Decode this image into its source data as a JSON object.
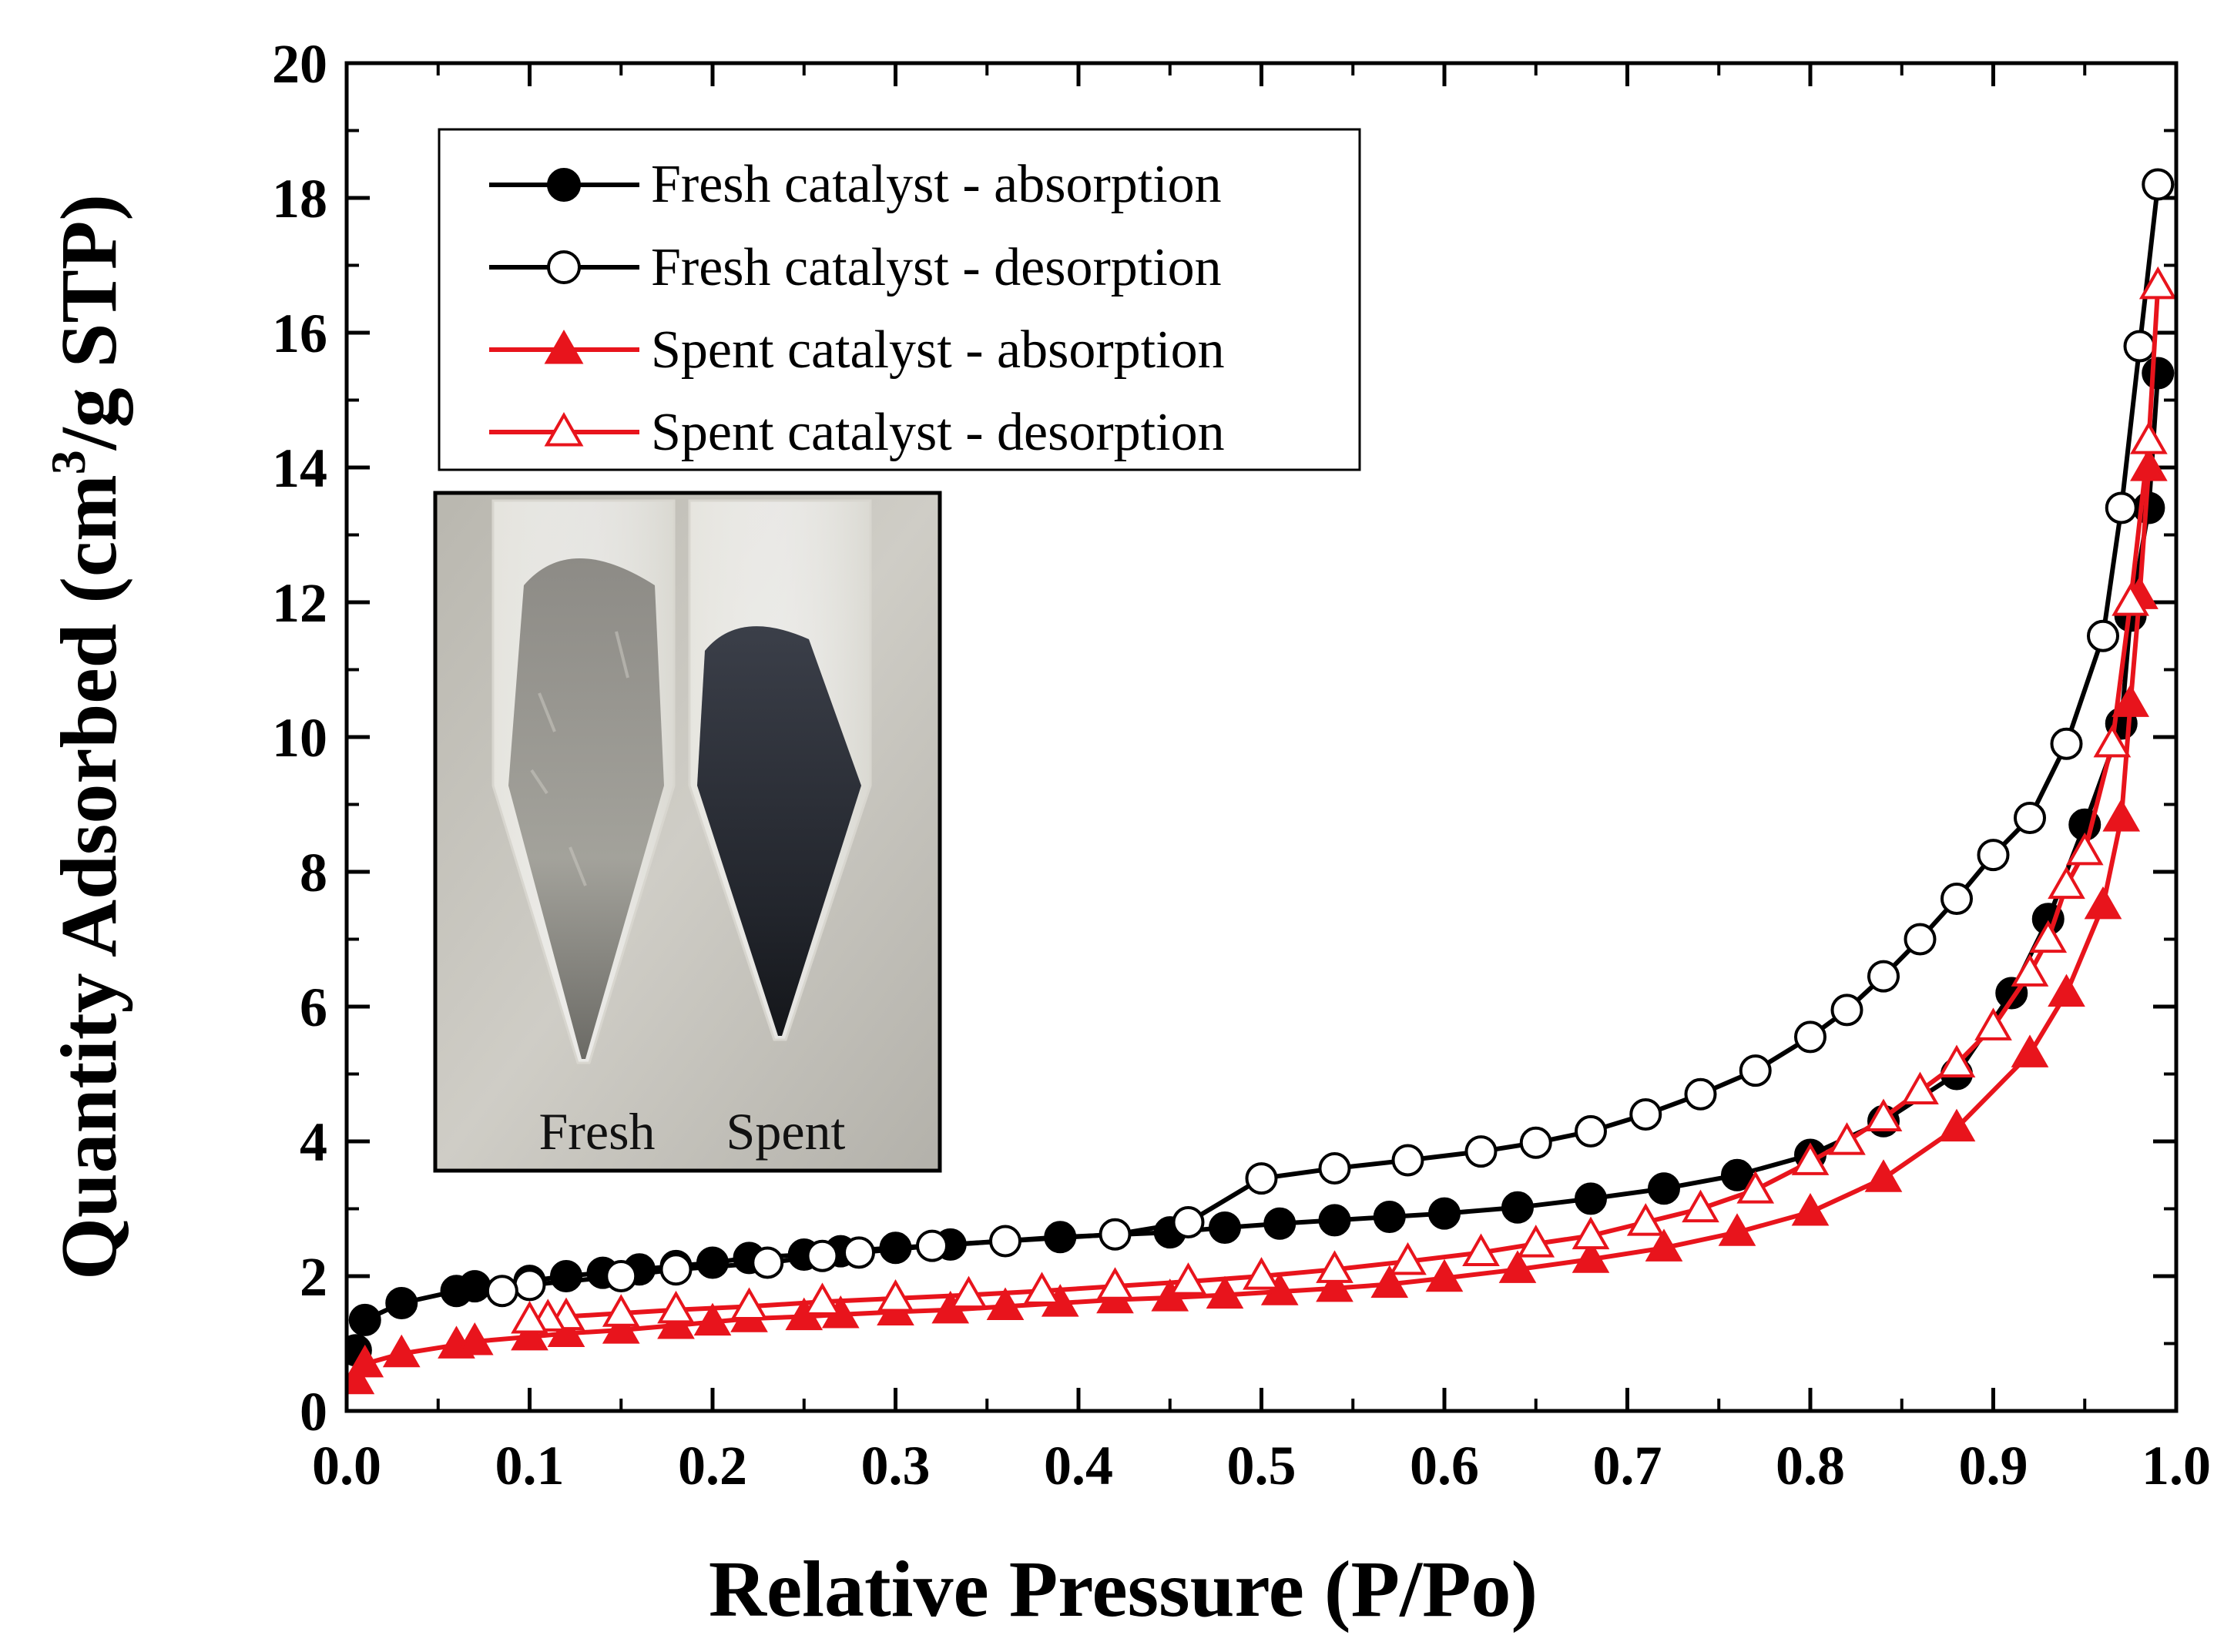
{
  "chart_data": {
    "type": "line",
    "title": "",
    "xlabel": "Relative Pressure (P/Po)",
    "ylabel_main": "Quantity Adsorbed (cm",
    "ylabel_sup": "3",
    "ylabel_tail": "/g STP)",
    "xlim": [
      0.0,
      1.0
    ],
    "ylim": [
      0,
      20
    ],
    "x_ticks": [
      "0.0",
      "0.1",
      "0.2",
      "0.3",
      "0.4",
      "0.5",
      "0.6",
      "0.7",
      "0.8",
      "0.9",
      "1.0"
    ],
    "y_ticks": [
      "0",
      "2",
      "4",
      "6",
      "8",
      "10",
      "12",
      "14",
      "16",
      "18",
      "20"
    ],
    "legend_position": "top-left",
    "series": [
      {
        "name": "Fresh catalyst - absorption",
        "color": "#000000",
        "marker": "circle",
        "filled": true,
        "points": [
          [
            0.005,
            0.9
          ],
          [
            0.01,
            1.35
          ],
          [
            0.03,
            1.6
          ],
          [
            0.06,
            1.78
          ],
          [
            0.07,
            1.85
          ],
          [
            0.1,
            1.93
          ],
          [
            0.12,
            2.0
          ],
          [
            0.14,
            2.05
          ],
          [
            0.16,
            2.1
          ],
          [
            0.18,
            2.15
          ],
          [
            0.2,
            2.2
          ],
          [
            0.22,
            2.27
          ],
          [
            0.25,
            2.32
          ],
          [
            0.27,
            2.37
          ],
          [
            0.3,
            2.42
          ],
          [
            0.33,
            2.47
          ],
          [
            0.39,
            2.58
          ],
          [
            0.45,
            2.65
          ],
          [
            0.48,
            2.72
          ],
          [
            0.51,
            2.78
          ],
          [
            0.54,
            2.83
          ],
          [
            0.57,
            2.88
          ],
          [
            0.6,
            2.93
          ],
          [
            0.64,
            3.02
          ],
          [
            0.68,
            3.15
          ],
          [
            0.72,
            3.3
          ],
          [
            0.76,
            3.5
          ],
          [
            0.8,
            3.8
          ],
          [
            0.84,
            4.3
          ],
          [
            0.88,
            5.0
          ],
          [
            0.91,
            6.2
          ],
          [
            0.93,
            7.3
          ],
          [
            0.95,
            8.7
          ],
          [
            0.97,
            10.2
          ],
          [
            0.975,
            11.8
          ],
          [
            0.985,
            13.4
          ],
          [
            0.99,
            15.4
          ]
        ]
      },
      {
        "name": "Fresh catalyst - desorption",
        "color": "#000000",
        "marker": "circle",
        "filled": false,
        "points": [
          [
            0.99,
            18.2
          ],
          [
            0.98,
            15.8
          ],
          [
            0.97,
            13.4
          ],
          [
            0.96,
            11.5
          ],
          [
            0.94,
            9.9
          ],
          [
            0.92,
            8.8
          ],
          [
            0.9,
            8.25
          ],
          [
            0.88,
            7.6
          ],
          [
            0.86,
            7.0
          ],
          [
            0.84,
            6.45
          ],
          [
            0.82,
            5.95
          ],
          [
            0.8,
            5.55
          ],
          [
            0.77,
            5.05
          ],
          [
            0.74,
            4.7
          ],
          [
            0.71,
            4.4
          ],
          [
            0.68,
            4.15
          ],
          [
            0.65,
            3.98
          ],
          [
            0.62,
            3.85
          ],
          [
            0.58,
            3.72
          ],
          [
            0.54,
            3.6
          ],
          [
            0.5,
            3.45
          ],
          [
            0.46,
            2.8
          ],
          [
            0.42,
            2.62
          ],
          [
            0.36,
            2.52
          ],
          [
            0.32,
            2.45
          ],
          [
            0.28,
            2.35
          ],
          [
            0.26,
            2.3
          ],
          [
            0.23,
            2.2
          ],
          [
            0.18,
            2.1
          ],
          [
            0.15,
            2.0
          ],
          [
            0.1,
            1.87
          ],
          [
            0.085,
            1.78
          ]
        ]
      },
      {
        "name": "Spent catalyst - absorption",
        "color": "#e8141c",
        "marker": "triangle",
        "filled": true,
        "points": [
          [
            0.005,
            0.45
          ],
          [
            0.01,
            0.7
          ],
          [
            0.03,
            0.85
          ],
          [
            0.06,
            0.98
          ],
          [
            0.07,
            1.03
          ],
          [
            0.1,
            1.1
          ],
          [
            0.12,
            1.15
          ],
          [
            0.15,
            1.2
          ],
          [
            0.18,
            1.27
          ],
          [
            0.2,
            1.32
          ],
          [
            0.22,
            1.37
          ],
          [
            0.25,
            1.4
          ],
          [
            0.27,
            1.43
          ],
          [
            0.3,
            1.47
          ],
          [
            0.33,
            1.5
          ],
          [
            0.36,
            1.55
          ],
          [
            0.39,
            1.6
          ],
          [
            0.42,
            1.65
          ],
          [
            0.45,
            1.68
          ],
          [
            0.48,
            1.72
          ],
          [
            0.51,
            1.77
          ],
          [
            0.54,
            1.82
          ],
          [
            0.57,
            1.88
          ],
          [
            0.6,
            1.97
          ],
          [
            0.64,
            2.1
          ],
          [
            0.68,
            2.25
          ],
          [
            0.72,
            2.42
          ],
          [
            0.76,
            2.65
          ],
          [
            0.8,
            2.95
          ],
          [
            0.84,
            3.45
          ],
          [
            0.88,
            4.2
          ],
          [
            0.92,
            5.3
          ],
          [
            0.94,
            6.2
          ],
          [
            0.96,
            7.5
          ],
          [
            0.97,
            8.8
          ],
          [
            0.975,
            10.5
          ],
          [
            0.98,
            12.1
          ],
          [
            0.985,
            14.0
          ]
        ]
      },
      {
        "name": "Spent catalyst - desorption",
        "color": "#e8141c",
        "marker": "triangle",
        "filled": false,
        "points": [
          [
            0.99,
            16.7
          ],
          [
            0.985,
            14.4
          ],
          [
            0.975,
            12.0
          ],
          [
            0.965,
            9.9
          ],
          [
            0.95,
            8.3
          ],
          [
            0.94,
            7.8
          ],
          [
            0.93,
            7.0
          ],
          [
            0.92,
            6.5
          ],
          [
            0.9,
            5.7
          ],
          [
            0.88,
            5.15
          ],
          [
            0.86,
            4.75
          ],
          [
            0.84,
            4.35
          ],
          [
            0.82,
            4.0
          ],
          [
            0.8,
            3.7
          ],
          [
            0.77,
            3.28
          ],
          [
            0.74,
            3.0
          ],
          [
            0.71,
            2.8
          ],
          [
            0.68,
            2.6
          ],
          [
            0.65,
            2.48
          ],
          [
            0.62,
            2.35
          ],
          [
            0.58,
            2.22
          ],
          [
            0.54,
            2.1
          ],
          [
            0.5,
            2.0
          ],
          [
            0.46,
            1.92
          ],
          [
            0.42,
            1.85
          ],
          [
            0.38,
            1.78
          ],
          [
            0.34,
            1.72
          ],
          [
            0.3,
            1.67
          ],
          [
            0.26,
            1.62
          ],
          [
            0.22,
            1.55
          ],
          [
            0.18,
            1.5
          ],
          [
            0.15,
            1.45
          ],
          [
            0.12,
            1.4
          ],
          [
            0.11,
            1.38
          ],
          [
            0.1,
            1.35
          ]
        ]
      }
    ],
    "inset_labels": [
      "Fresh",
      "Spent"
    ]
  }
}
